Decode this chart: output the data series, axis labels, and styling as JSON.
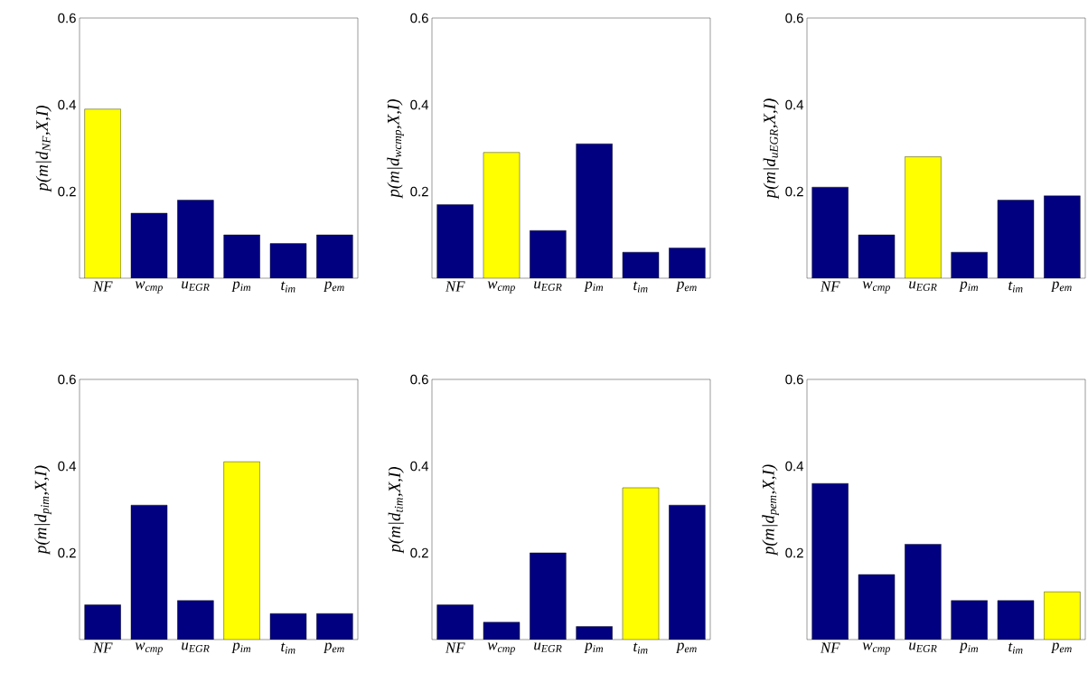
{
  "chart_data": [
    {
      "type": "bar",
      "ylabel": "p(m|d$_{NF}$,X,I)",
      "categories": [
        "NF",
        "w$_{cmp}$",
        "u$_{EGR}$",
        "p$_{im}$",
        "t$_{im}$",
        "p$_{em}$"
      ],
      "values": [
        0.39,
        0.15,
        0.18,
        0.1,
        0.08,
        0.1
      ],
      "colors": [
        "#ffff00",
        "#000080",
        "#000080",
        "#000080",
        "#000080",
        "#000080"
      ],
      "ylim": [
        0,
        0.6
      ],
      "yticks": [
        0.2,
        0.4,
        0.6
      ]
    },
    {
      "type": "bar",
      "ylabel": "p(m|d$_{wcmp}$,X,I)",
      "categories": [
        "NF",
        "w$_{cmp}$",
        "u$_{EGR}$",
        "p$_{im}$",
        "t$_{im}$",
        "p$_{em}$"
      ],
      "values": [
        0.17,
        0.29,
        0.11,
        0.31,
        0.06,
        0.07
      ],
      "colors": [
        "#000080",
        "#ffff00",
        "#000080",
        "#000080",
        "#000080",
        "#000080"
      ],
      "ylim": [
        0,
        0.6
      ],
      "yticks": [
        0.2,
        0.4,
        0.6
      ]
    },
    {
      "type": "bar",
      "ylabel": "p(m|d$_{uEGR}$,X,I)",
      "categories": [
        "NF",
        "w$_{cmp}$",
        "u$_{EGR}$",
        "p$_{im}$",
        "t$_{im}$",
        "p$_{em}$"
      ],
      "values": [
        0.21,
        0.1,
        0.28,
        0.06,
        0.18,
        0.19
      ],
      "colors": [
        "#000080",
        "#000080",
        "#ffff00",
        "#000080",
        "#000080",
        "#000080"
      ],
      "ylim": [
        0,
        0.6
      ],
      "yticks": [
        0.2,
        0.4,
        0.6
      ]
    },
    {
      "type": "bar",
      "ylabel": "p(m|d$_{pim}$,X,I)",
      "categories": [
        "NF",
        "w$_{cmp}$",
        "u$_{EGR}$",
        "p$_{im}$",
        "t$_{im}$",
        "p$_{em}$"
      ],
      "values": [
        0.08,
        0.31,
        0.09,
        0.41,
        0.06,
        0.06
      ],
      "colors": [
        "#000080",
        "#000080",
        "#000080",
        "#ffff00",
        "#000080",
        "#000080"
      ],
      "ylim": [
        0,
        0.6
      ],
      "yticks": [
        0.2,
        0.4,
        0.6
      ]
    },
    {
      "type": "bar",
      "ylabel": "p(m|d$_{tim}$,X,I)",
      "categories": [
        "NF",
        "w$_{cmp}$",
        "u$_{EGR}$",
        "p$_{im}$",
        "t$_{im}$",
        "p$_{em}$"
      ],
      "values": [
        0.08,
        0.04,
        0.2,
        0.03,
        0.35,
        0.31
      ],
      "colors": [
        "#000080",
        "#000080",
        "#000080",
        "#000080",
        "#ffff00",
        "#000080"
      ],
      "ylim": [
        0,
        0.6
      ],
      "yticks": [
        0.2,
        0.4,
        0.6
      ]
    },
    {
      "type": "bar",
      "ylabel": "p(m|d$_{pem}$,X,I)",
      "categories": [
        "NF",
        "w$_{cmp}$",
        "u$_{EGR}$",
        "p$_{im}$",
        "t$_{im}$",
        "p$_{em}$"
      ],
      "values": [
        0.36,
        0.15,
        0.22,
        0.09,
        0.09,
        0.11
      ],
      "colors": [
        "#000080",
        "#000080",
        "#000080",
        "#000080",
        "#000080",
        "#ffff00"
      ],
      "ylim": [
        0,
        0.6
      ],
      "yticks": [
        0.2,
        0.4,
        0.6
      ]
    }
  ]
}
